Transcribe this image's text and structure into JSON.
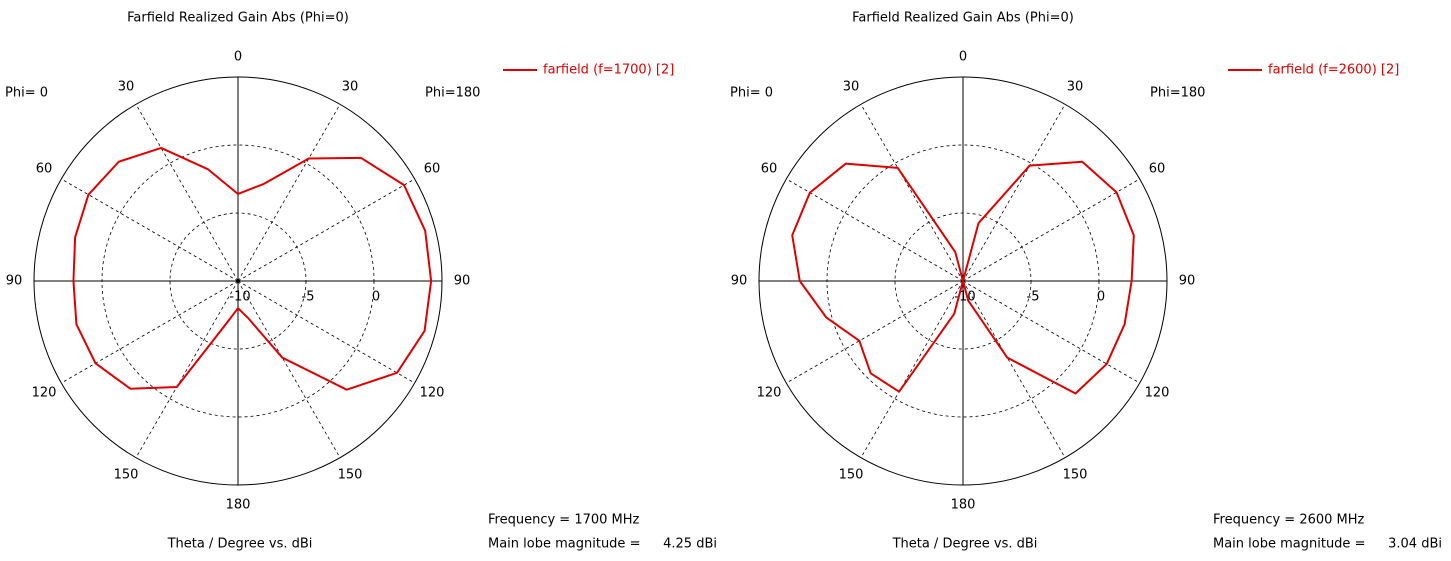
{
  "chart_data": [
    {
      "type": "polar",
      "title": "Farfield Realized Gain Abs (Phi=0)",
      "side_labels": [
        "Phi= 0",
        "Phi=180"
      ],
      "x_label": "Theta / Degree vs. dBi",
      "annotations": {
        "frequency": "Frequency = 1700 MHz",
        "main_lobe_label": "Main lobe magnitude =",
        "main_lobe_value": "4.25 dBi"
      },
      "angles": [
        0,
        15,
        30,
        45,
        60,
        75,
        90,
        105,
        120,
        135,
        150,
        165,
        180,
        195,
        210,
        225,
        240,
        255,
        270,
        285,
        300,
        315,
        330,
        345
      ],
      "series": [
        {
          "name": "farfield (f=1700) [2]",
          "color": "#e00000",
          "values": [
            -3.6,
            -2.6,
            0.4,
            2.8,
            4.1,
            4.25,
            4.2,
            4.2,
            3.5,
            1.3,
            -3.5,
            -7.2,
            -8,
            -6.8,
            -1.0,
            1.2,
            2.1,
            2.3,
            2.1,
            2.4,
            2.7,
            2.4,
            1.3,
            -1.5
          ]
        }
      ],
      "rlim": [
        -10,
        5
      ],
      "rticks": [
        -10,
        -5,
        0
      ],
      "angle_ticks": [
        0,
        30,
        60,
        90,
        120,
        150,
        180,
        {
          "value": 210,
          "label": "150"
        },
        {
          "value": 240,
          "label": "120"
        },
        {
          "value": 270,
          "label": "90"
        },
        {
          "value": 300,
          "label": "60"
        },
        {
          "value": 330,
          "label": "30"
        }
      ]
    },
    {
      "type": "polar",
      "title": "Farfield Realized Gain Abs (Phi=0)",
      "side_labels": [
        "Phi= 0",
        "Phi=180"
      ],
      "x_label": "Theta / Degree vs. dBi",
      "annotations": {
        "frequency": "Frequency = 2600 MHz",
        "main_lobe_label": "Main lobe magnitude =",
        "main_lobe_value": "3.04 dBi"
      },
      "angles": [
        0,
        15,
        30,
        45,
        60,
        75,
        90,
        105,
        120,
        135,
        150,
        165,
        180,
        195,
        210,
        225,
        240,
        255,
        270,
        285,
        300,
        315,
        330,
        345
      ],
      "series": [
        {
          "name": "farfield (f=2600) [2]",
          "color": "#e00000",
          "values": [
            -10,
            -5.6,
            -0.2,
            2.4,
            3.04,
            3.0,
            2.4,
            2.3,
            2.2,
            1.7,
            -3.5,
            -8.5,
            -10,
            -7.5,
            -0.6,
            -0.4,
            -1.2,
            0.4,
            2.0,
            3.0,
            3.0,
            2.2,
            -0.4,
            -7.8
          ]
        }
      ],
      "rlim": [
        -10,
        5
      ],
      "rticks": [
        -10,
        -5,
        0
      ],
      "angle_ticks": [
        0,
        30,
        60,
        90,
        120,
        150,
        180,
        {
          "value": 210,
          "label": "150"
        },
        {
          "value": 240,
          "label": "120"
        },
        {
          "value": 270,
          "label": "90"
        },
        {
          "value": 300,
          "label": "60"
        },
        {
          "value": 330,
          "label": "30"
        }
      ]
    }
  ]
}
